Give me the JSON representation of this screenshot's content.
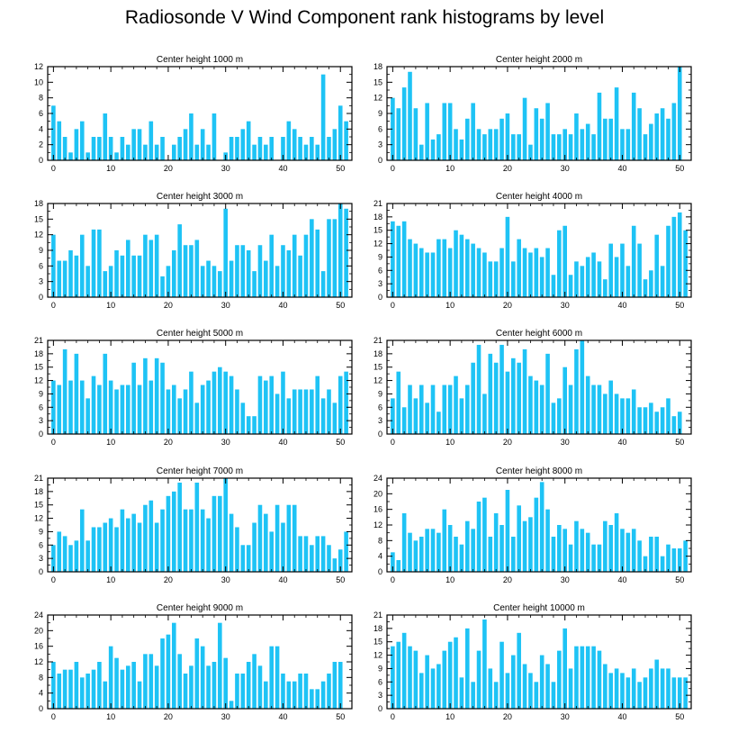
{
  "figure_title": "Radiosonde V Wind Component rank histograms by level",
  "bar_color": "#1EC3F5",
  "chart_data": [
    {
      "type": "bar",
      "title": "Center height 1000 m",
      "x_start": 0,
      "ylim": [
        0,
        12
      ],
      "yticks": [
        0,
        2,
        4,
        6,
        8,
        10,
        12
      ],
      "xticks": [
        0,
        10,
        20,
        30,
        40,
        50
      ],
      "values": [
        7,
        5,
        3,
        1,
        4,
        5,
        1,
        3,
        3,
        6,
        3,
        1,
        3,
        2,
        4,
        4,
        2,
        5,
        2,
        3,
        0,
        2,
        3,
        4,
        6,
        2,
        4,
        2,
        6,
        0,
        1,
        3,
        3,
        4,
        5,
        2,
        3,
        2,
        3,
        0,
        3,
        5,
        4,
        3,
        2,
        3,
        2,
        11,
        3,
        4,
        7,
        5
      ]
    },
    {
      "type": "bar",
      "title": "Center height 2000 m",
      "x_start": 0,
      "ylim": [
        0,
        18
      ],
      "yticks": [
        0,
        3,
        6,
        9,
        12,
        15,
        18
      ],
      "xticks": [
        0,
        10,
        20,
        30,
        40,
        50
      ],
      "values": [
        12,
        10,
        14,
        17,
        10,
        3,
        11,
        4,
        5,
        11,
        11,
        6,
        4,
        8,
        11,
        6,
        5,
        6,
        6,
        8,
        9,
        5,
        5,
        12,
        3,
        10,
        8,
        11,
        5,
        5,
        6,
        5,
        9,
        6,
        7,
        5,
        13,
        8,
        8,
        14,
        6,
        6,
        13,
        10,
        5,
        7,
        9,
        10,
        8,
        11,
        18
      ]
    },
    {
      "type": "bar",
      "title": "Center height 3000 m",
      "x_start": 0,
      "ylim": [
        0,
        18
      ],
      "yticks": [
        0,
        3,
        6,
        9,
        12,
        15,
        18
      ],
      "xticks": [
        0,
        10,
        20,
        30,
        40,
        50
      ],
      "values": [
        12,
        7,
        7,
        9,
        8,
        12,
        6,
        13,
        13,
        5,
        6,
        9,
        8,
        11,
        8,
        8,
        12,
        11,
        12,
        4,
        6,
        9,
        14,
        10,
        10,
        11,
        6,
        7,
        6,
        5,
        17,
        7,
        10,
        10,
        9,
        5,
        10,
        7,
        12,
        6,
        10,
        9,
        12,
        8,
        12,
        15,
        13,
        5,
        15,
        15,
        18,
        17
      ]
    },
    {
      "type": "bar",
      "title": "Center height 4000 m",
      "x_start": 0,
      "ylim": [
        0,
        21
      ],
      "yticks": [
        0,
        3,
        6,
        9,
        12,
        15,
        18,
        21
      ],
      "xticks": [
        0,
        10,
        20,
        30,
        40,
        50
      ],
      "values": [
        17,
        16,
        17,
        13,
        12,
        11,
        10,
        10,
        13,
        13,
        11,
        15,
        14,
        13,
        12,
        11,
        10,
        8,
        8,
        11,
        18,
        8,
        13,
        11,
        10,
        11,
        9,
        11,
        5,
        15,
        16,
        5,
        8,
        7,
        9,
        10,
        8,
        4,
        12,
        9,
        12,
        7,
        16,
        12,
        4,
        6,
        14,
        7,
        16,
        18,
        19,
        15
      ]
    },
    {
      "type": "bar",
      "title": "Center height 5000 m",
      "x_start": 0,
      "ylim": [
        0,
        21
      ],
      "yticks": [
        0,
        3,
        6,
        9,
        12,
        15,
        18,
        21
      ],
      "xticks": [
        0,
        10,
        20,
        30,
        40,
        50
      ],
      "values": [
        12,
        11,
        19,
        12,
        18,
        12,
        8,
        13,
        11,
        18,
        12,
        10,
        11,
        11,
        16,
        11,
        17,
        12,
        17,
        16,
        10,
        11,
        8,
        10,
        14,
        7,
        11,
        12,
        14,
        15,
        14,
        13,
        10,
        7,
        4,
        4,
        13,
        12,
        13,
        9,
        14,
        8,
        10,
        10,
        10,
        10,
        13,
        8,
        10,
        7,
        13,
        14
      ]
    },
    {
      "type": "bar",
      "title": "Center height 6000 m",
      "x_start": 0,
      "ylim": [
        0,
        21
      ],
      "yticks": [
        0,
        3,
        6,
        9,
        12,
        15,
        18,
        21
      ],
      "xticks": [
        0,
        10,
        20,
        30,
        40,
        50
      ],
      "values": [
        8,
        14,
        6,
        11,
        8,
        11,
        7,
        11,
        5,
        11,
        11,
        13,
        8,
        11,
        16,
        20,
        9,
        18,
        16,
        20,
        14,
        17,
        16,
        19,
        13,
        12,
        11,
        18,
        7,
        8,
        15,
        11,
        19,
        21,
        13,
        11,
        11,
        9,
        12,
        9,
        8,
        8,
        10,
        6,
        6,
        7,
        5,
        6,
        8,
        4,
        5
      ]
    },
    {
      "type": "bar",
      "title": "Center height 7000 m",
      "x_start": 0,
      "ylim": [
        0,
        21
      ],
      "yticks": [
        0,
        3,
        6,
        9,
        12,
        15,
        18,
        21
      ],
      "xticks": [
        0,
        10,
        20,
        30,
        40,
        50
      ],
      "values": [
        6,
        9,
        8,
        6,
        7,
        14,
        7,
        10,
        10,
        11,
        12,
        10,
        14,
        12,
        13,
        11,
        15,
        16,
        11,
        14,
        17,
        18,
        20,
        14,
        14,
        20,
        14,
        12,
        17,
        17,
        21,
        13,
        10,
        6,
        6,
        11,
        15,
        13,
        9,
        15,
        11,
        15,
        15,
        8,
        8,
        6,
        8,
        8,
        6,
        3,
        5,
        9
      ]
    },
    {
      "type": "bar",
      "title": "Center height 8000 m",
      "x_start": 0,
      "ylim": [
        0,
        24
      ],
      "yticks": [
        0,
        4,
        8,
        12,
        16,
        20,
        24
      ],
      "xticks": [
        0,
        10,
        20,
        30,
        40,
        50
      ],
      "values": [
        5,
        3,
        15,
        10,
        8,
        9,
        11,
        11,
        10,
        16,
        12,
        9,
        7,
        13,
        11,
        18,
        19,
        9,
        15,
        12,
        21,
        9,
        17,
        13,
        14,
        19,
        23,
        16,
        9,
        12,
        11,
        7,
        13,
        11,
        10,
        7,
        7,
        13,
        12,
        15,
        11,
        10,
        11,
        8,
        4,
        9,
        9,
        4,
        7,
        6,
        6,
        8
      ]
    },
    {
      "type": "bar",
      "title": "Center height 9000 m",
      "x_start": 0,
      "ylim": [
        0,
        24
      ],
      "yticks": [
        0,
        4,
        8,
        12,
        16,
        20,
        24
      ],
      "xticks": [
        0,
        10,
        20,
        30,
        40,
        50
      ],
      "values": [
        12,
        9,
        10,
        10,
        12,
        8,
        9,
        10,
        12,
        7,
        16,
        13,
        10,
        11,
        12,
        7,
        14,
        14,
        11,
        18,
        19,
        22,
        14,
        9,
        11,
        18,
        16,
        11,
        12,
        22,
        13,
        2,
        9,
        9,
        12,
        14,
        11,
        7,
        16,
        16,
        9,
        7,
        7,
        9,
        9,
        5,
        5,
        7,
        9,
        12,
        12
      ]
    },
    {
      "type": "bar",
      "title": "Center height 10000 m",
      "x_start": 0,
      "ylim": [
        0,
        21
      ],
      "yticks": [
        0,
        3,
        6,
        9,
        12,
        15,
        18,
        21
      ],
      "xticks": [
        0,
        10,
        20,
        30,
        40,
        50
      ],
      "values": [
        14,
        15,
        17,
        14,
        13,
        8,
        12,
        9,
        10,
        13,
        15,
        16,
        7,
        18,
        6,
        13,
        20,
        9,
        6,
        15,
        8,
        12,
        17,
        10,
        8,
        6,
        12,
        10,
        6,
        13,
        18,
        9,
        14,
        14,
        14,
        14,
        13,
        10,
        8,
        9,
        8,
        7,
        9,
        6,
        7,
        9,
        11,
        9,
        9,
        7,
        7,
        7
      ]
    }
  ]
}
